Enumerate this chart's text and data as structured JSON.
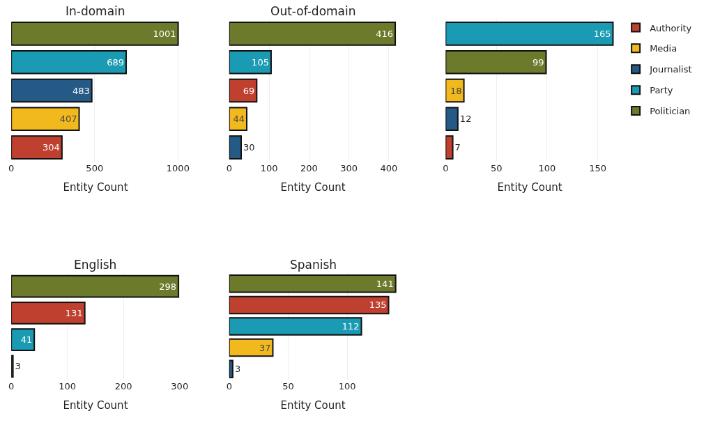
{
  "chart_data": [
    {
      "type": "bar",
      "orientation": "horizontal",
      "title": "In-domain",
      "xlabel": "Entity Count",
      "categories": [
        null,
        null,
        null,
        null,
        null
      ],
      "xlim": [
        0,
        1010
      ],
      "xticks": [
        0,
        500,
        1000
      ],
      "grid": "x",
      "tick_labels": "x",
      "data_labels": true,
      "legend": "top right",
      "series": [
        {
          "name": "Authority",
          "color": "#c0402f",
          "values": [
            null,
            null,
            null,
            null,
            304
          ]
        },
        {
          "name": "Media",
          "color": "#f2b91e",
          "values": [
            null,
            null,
            null,
            407,
            null
          ]
        },
        {
          "name": "Journalist",
          "color": "#245a85",
          "values": [
            null,
            null,
            483,
            null,
            null
          ]
        },
        {
          "name": "Party",
          "color": "#1a9ab3",
          "values": [
            null,
            689,
            null,
            null,
            null
          ]
        },
        {
          "name": "Politician",
          "color": "#6b7a2b",
          "values": [
            1001,
            null,
            null,
            null,
            null
          ]
        }
      ]
    },
    {
      "type": "bar",
      "orientation": "horizontal",
      "title": "Out-of-domain",
      "xlabel": "Entity Count",
      "categories": [
        null,
        null,
        null,
        null,
        null
      ],
      "xlim": [
        0,
        420
      ],
      "xticks": [
        0,
        100,
        200,
        300,
        400
      ],
      "grid": "x",
      "tick_labels": "x",
      "data_labels": true,
      "series": [
        {
          "color": "#c0402f",
          "values": [
            null,
            null,
            69,
            null,
            null
          ]
        },
        {
          "color": "#f2b91e",
          "values": [
            null,
            null,
            null,
            44,
            null
          ]
        },
        {
          "color": "#245a85",
          "values": [
            null,
            null,
            null,
            null,
            30
          ]
        },
        {
          "color": "#1a9ab3",
          "values": [
            null,
            105,
            null,
            null,
            null
          ]
        },
        {
          "color": "#6b7a2b",
          "values": [
            416,
            null,
            null,
            null,
            null
          ]
        }
      ]
    },
    {
      "type": "bar",
      "orientation": "horizontal",
      "xlabel": "Entity Count",
      "categories": [
        null,
        null,
        null,
        null,
        null
      ],
      "xlim": [
        0,
        166
      ],
      "xticks": [
        0,
        50,
        100,
        150
      ],
      "grid": "x",
      "tick_labels": "x",
      "data_labels": true,
      "series": [
        {
          "color": "#c0402f",
          "values": [
            null,
            null,
            null,
            null,
            7
          ]
        },
        {
          "color": "#f2b91e",
          "values": [
            null,
            null,
            18,
            null,
            null
          ]
        },
        {
          "color": "#245a85",
          "values": [
            null,
            null,
            null,
            12,
            null
          ]
        },
        {
          "color": "#1a9ab3",
          "values": [
            165,
            null,
            null,
            null,
            null
          ]
        },
        {
          "color": "#6b7a2b",
          "values": [
            null,
            99,
            null,
            null,
            null
          ]
        }
      ]
    },
    {
      "type": "bar",
      "orientation": "horizontal",
      "title": "English",
      "xlabel": "Entity Count",
      "categories": [
        null,
        null,
        null,
        null
      ],
      "xlim": [
        0,
        300
      ],
      "xticks": [
        0,
        100,
        200,
        300
      ],
      "grid": "x",
      "tick_labels": "x",
      "data_labels": true,
      "series": [
        {
          "color": "#c0402f",
          "values": [
            null,
            131,
            null,
            null
          ]
        },
        {
          "color": "#245a85",
          "values": [
            null,
            null,
            null,
            3
          ]
        },
        {
          "color": "#1a9ab3",
          "values": [
            null,
            null,
            41,
            null
          ]
        },
        {
          "color": "#6b7a2b",
          "values": [
            298,
            null,
            null,
            null
          ]
        }
      ]
    },
    {
      "type": "bar",
      "orientation": "horizontal",
      "title": "Spanish",
      "xlabel": "Entity Count",
      "categories": [
        null,
        null,
        null,
        null,
        null
      ],
      "xlim": [
        0,
        142
      ],
      "xticks": [
        0,
        50,
        100
      ],
      "grid": "x",
      "tick_labels": "x",
      "data_labels": true,
      "series": [
        {
          "color": "#c0402f",
          "values": [
            null,
            135,
            null,
            null,
            null
          ]
        },
        {
          "color": "#f2b91e",
          "values": [
            null,
            null,
            null,
            37,
            null
          ]
        },
        {
          "color": "#245a85",
          "values": [
            null,
            null,
            null,
            null,
            3
          ]
        },
        {
          "color": "#1a9ab3",
          "values": [
            null,
            null,
            112,
            null,
            null
          ]
        },
        {
          "color": "#6b7a2b",
          "values": [
            141,
            null,
            null,
            null,
            null
          ]
        }
      ]
    }
  ]
}
